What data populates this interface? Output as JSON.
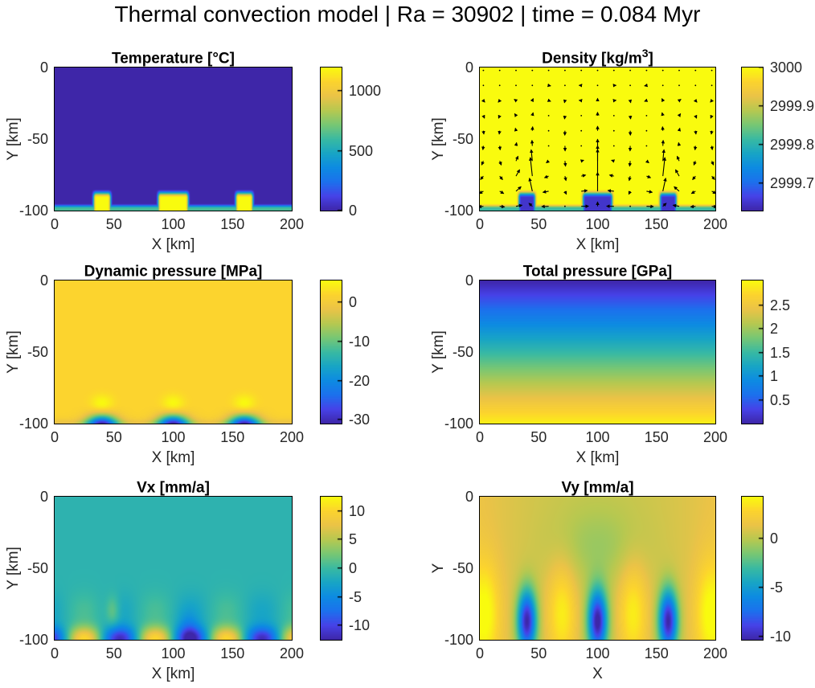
{
  "figure_title": "Thermal convection model | Ra = 30902 | time = 0.084 Myr",
  "colors": {
    "background": "#ffffff",
    "title_text": "#000000",
    "axis_text": "#262626",
    "axis_line": "#000000",
    "quiver_arrows": "#000000",
    "colormap": "parula",
    "parula_stops": [
      [
        0.0,
        "#3E26A8"
      ],
      [
        0.1,
        "#4642E8"
      ],
      [
        0.2,
        "#1C71ED"
      ],
      [
        0.3,
        "#0D8BE2"
      ],
      [
        0.4,
        "#18A5C6"
      ],
      [
        0.5,
        "#3ABAA2"
      ],
      [
        0.6,
        "#78C773"
      ],
      [
        0.7,
        "#B7C850"
      ],
      [
        0.8,
        "#EBC347"
      ],
      [
        0.9,
        "#FCD42E"
      ],
      [
        1.0,
        "#F9FB0E"
      ]
    ]
  },
  "chart_data": [
    {
      "type": "heatmap",
      "field": "temperature",
      "title": {
        "pre": "Temperature [°C]",
        "sup": "",
        "post": ""
      },
      "xlabel": "X [km]",
      "ylabel": "Y [km]",
      "xlim": [
        0,
        200
      ],
      "ylim": [
        -100,
        0
      ],
      "x_ticks": [
        "0",
        "50",
        "100",
        "150",
        "200"
      ],
      "y_ticks": [
        "0",
        "-50",
        "-100"
      ],
      "clim": [
        0,
        1195
      ],
      "colorbar_ticks": [
        {
          "label": "1000",
          "value": 1000
        },
        {
          "label": "500",
          "value": 500
        },
        {
          "label": "0",
          "value": 0
        }
      ]
    },
    {
      "type": "heatmap+quiver",
      "field": "density",
      "title": {
        "pre": "Density [kg/m",
        "sup": "3",
        "post": "]"
      },
      "xlabel": "X [km]",
      "ylabel": "Y [km]",
      "xlim": [
        0,
        200
      ],
      "ylim": [
        -100,
        0
      ],
      "x_ticks": [
        "0",
        "50",
        "100",
        "150",
        "200"
      ],
      "y_ticks": [
        "0",
        "-50",
        "-100"
      ],
      "clim": [
        2999.63,
        3000.0
      ],
      "colorbar_ticks": [
        {
          "label": "3000",
          "value": 3000
        },
        {
          "label": "2999.9",
          "value": 2999.9
        },
        {
          "label": "2999.8",
          "value": 2999.8
        },
        {
          "label": "2999.7",
          "value": 2999.7
        }
      ]
    },
    {
      "type": "heatmap",
      "field": "dynamic_pressure",
      "title": {
        "pre": "Dynamic pressure [MPa]",
        "sup": "",
        "post": ""
      },
      "xlabel": "X [km]",
      "ylabel": "Y [km]",
      "xlim": [
        0,
        200
      ],
      "ylim": [
        -100,
        0
      ],
      "x_ticks": [
        "0",
        "50",
        "100",
        "150",
        "200"
      ],
      "y_ticks": [
        "0",
        "-50",
        "-100"
      ],
      "clim": [
        -31,
        5.6
      ],
      "colorbar_ticks": [
        {
          "label": "0",
          "value": 0
        },
        {
          "label": "-10",
          "value": -10
        },
        {
          "label": "-20",
          "value": -20
        },
        {
          "label": "-30",
          "value": -30
        }
      ]
    },
    {
      "type": "heatmap",
      "field": "total_pressure",
      "title": {
        "pre": "Total pressure [GPa]",
        "sup": "",
        "post": ""
      },
      "xlabel": "X [km]",
      "ylabel": "Y [km]",
      "xlim": [
        0,
        200
      ],
      "ylim": [
        -100,
        0
      ],
      "x_ticks": [
        "0",
        "50",
        "100",
        "150",
        "200"
      ],
      "y_ticks": [
        "0",
        "-50",
        "-100"
      ],
      "clim": [
        0,
        3.02
      ],
      "colorbar_ticks": [
        {
          "label": "2.5",
          "value": 2.5
        },
        {
          "label": "2",
          "value": 2
        },
        {
          "label": "1.5",
          "value": 1.5
        },
        {
          "label": "1",
          "value": 1
        },
        {
          "label": "0.5",
          "value": 0.5
        }
      ]
    },
    {
      "type": "heatmap",
      "field": "vx",
      "title": {
        "pre": "Vx [mm/a]",
        "sup": "",
        "post": ""
      },
      "xlabel": "X [km]",
      "ylabel": "Y [km]",
      "xlim": [
        0,
        200
      ],
      "ylim": [
        -100,
        0
      ],
      "x_ticks": [
        "0",
        "50",
        "100",
        "150",
        "200"
      ],
      "y_ticks": [
        "0",
        "-50",
        "-100"
      ],
      "clim": [
        -12.5,
        12.5
      ],
      "colorbar_ticks": [
        {
          "label": "10",
          "value": 10
        },
        {
          "label": "5",
          "value": 5
        },
        {
          "label": "0",
          "value": 0
        },
        {
          "label": "-5",
          "value": -5
        },
        {
          "label": "-10",
          "value": -10
        }
      ]
    },
    {
      "type": "heatmap",
      "field": "vy",
      "title": {
        "pre": "Vy [mm/a]",
        "sup": "",
        "post": ""
      },
      "xlabel": "X",
      "ylabel": "Y",
      "xlim": [
        0,
        200
      ],
      "ylim": [
        -100,
        0
      ],
      "x_ticks": [
        "0",
        "50",
        "100",
        "150",
        "200"
      ],
      "y_ticks": [
        "0",
        "-50",
        "-100"
      ],
      "clim": [
        -10.3,
        4.2
      ],
      "colorbar_ticks": [
        {
          "label": "0",
          "value": 0
        },
        {
          "label": "-5",
          "value": -5
        },
        {
          "label": "-10",
          "value": -10
        }
      ]
    }
  ],
  "model": {
    "domain_km": {
      "x": [
        0,
        200
      ],
      "depth": [
        0,
        100
      ]
    },
    "plumes": {
      "centers_km": [
        40,
        100,
        160
      ],
      "half_widths_km": [
        6.5,
        12,
        6.5
      ],
      "top_depth_km": 88
    },
    "temperature": {
      "background_C": 0,
      "plume_C": 1200,
      "bottom_layer_C": 620
    },
    "density": {
      "background_kg_m3": 3000,
      "plume_drop": 0.35,
      "bottom_layer_drop": 0.185
    },
    "dynamic_pressure": {
      "background_MPa": 1.9,
      "highs_above_plumes_MPa": 5.5,
      "lows_at_bottom_MPa": -30
    },
    "total_pressure": {
      "surface_GPa": 0,
      "bottom_GPa": 2.94
    },
    "velocity": {
      "cell_width_km": 60,
      "vx_background": -0.9,
      "vx_extrema_mm_a": [
        -12,
        11
      ],
      "vy_extrema_mm_a": [
        -10,
        4
      ]
    },
    "quiver": {
      "nx": 15,
      "ny": 10
    }
  }
}
